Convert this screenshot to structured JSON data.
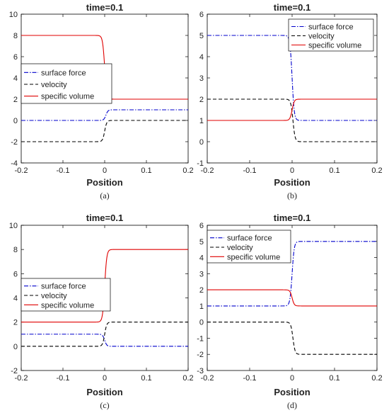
{
  "chart_data": [
    {
      "type": "line",
      "title": "time=0.1",
      "xlabel": "Position",
      "ylabel": "",
      "caption": "(a)",
      "xlim": [
        -0.2,
        0.2
      ],
      "ylim": [
        -4,
        10
      ],
      "xticks": [
        "-0.2",
        "-0.1",
        "0",
        "0.1",
        "0.2"
      ],
      "yticks": [
        "-4",
        "-2",
        "0",
        "2",
        "4",
        "6",
        "8",
        "10"
      ],
      "legend": "middle-left",
      "series": [
        {
          "name": "surface force",
          "color": "#0000cc",
          "style": "dashdot",
          "left": 0,
          "right": 1,
          "center": 0.003,
          "width": 0.0025
        },
        {
          "name": "velocity",
          "color": "#000000",
          "style": "dashed",
          "left": -2,
          "right": 0,
          "center": 0.0,
          "width": 0.0025
        },
        {
          "name": "specific volume",
          "color": "#e00000",
          "style": "solid",
          "left": 8,
          "right": 2,
          "center": 0.0,
          "width": 0.0025
        }
      ]
    },
    {
      "type": "line",
      "title": "time=0.1",
      "xlabel": "Position",
      "ylabel": "",
      "caption": "(b)",
      "xlim": [
        -0.2,
        0.2
      ],
      "ylim": [
        -1,
        6
      ],
      "xticks": [
        "-0.2",
        "-0.1",
        "0",
        "0.1",
        "0.2"
      ],
      "yticks": [
        "-1",
        "0",
        "1",
        "2",
        "3",
        "4",
        "5",
        "6"
      ],
      "legend": "top-right",
      "series": [
        {
          "name": "surface force",
          "color": "#0000cc",
          "style": "dashdot",
          "left": 5,
          "right": 1,
          "center": 0.0,
          "width": 0.0025
        },
        {
          "name": "velocity",
          "color": "#000000",
          "style": "dashed",
          "left": 2,
          "right": 0,
          "center": 0.002,
          "width": 0.0025
        },
        {
          "name": "specific volume",
          "color": "#e00000",
          "style": "solid",
          "left": 1,
          "right": 2,
          "center": 0.0,
          "width": 0.0025
        }
      ]
    },
    {
      "type": "line",
      "title": "time=0.1",
      "xlabel": "Position",
      "ylabel": "",
      "caption": "(c)",
      "xlim": [
        -0.2,
        0.2
      ],
      "ylim": [
        -2,
        10
      ],
      "xticks": [
        "-0.2",
        "-0.1",
        "0",
        "0.1",
        "0.2"
      ],
      "yticks": [
        "-2",
        "0",
        "2",
        "4",
        "6",
        "8",
        "10"
      ],
      "legend": "lower-left",
      "series": [
        {
          "name": "surface force",
          "color": "#0000cc",
          "style": "dashdot",
          "left": 1,
          "right": 0,
          "center": 0.0,
          "width": 0.0025
        },
        {
          "name": "velocity",
          "color": "#000000",
          "style": "dashed",
          "left": 0,
          "right": 2,
          "center": 0.0,
          "width": 0.0025
        },
        {
          "name": "specific volume",
          "color": "#e00000",
          "style": "solid",
          "left": 2,
          "right": 8,
          "center": 0.0,
          "width": 0.0025
        }
      ]
    },
    {
      "type": "line",
      "title": "time=0.1",
      "xlabel": "Position",
      "ylabel": "",
      "caption": "(d)",
      "xlim": [
        -0.2,
        0.2
      ],
      "ylim": [
        -3,
        6
      ],
      "xticks": [
        "-0.2",
        "-0.1",
        "0",
        "0.1",
        "0.2"
      ],
      "yticks": [
        "-3",
        "-2",
        "-1",
        "0",
        "1",
        "2",
        "3",
        "4",
        "5",
        "6"
      ],
      "legend": "top-left",
      "series": [
        {
          "name": "surface force",
          "color": "#0000cc",
          "style": "dashdot",
          "left": 1,
          "right": 5,
          "center": 0.0,
          "width": 0.0025
        },
        {
          "name": "velocity",
          "color": "#000000",
          "style": "dashed",
          "left": 0,
          "right": -2,
          "center": 0.002,
          "width": 0.0025
        },
        {
          "name": "specific volume",
          "color": "#e00000",
          "style": "solid",
          "left": 2,
          "right": 1,
          "center": 0.0,
          "width": 0.0025
        }
      ]
    }
  ]
}
